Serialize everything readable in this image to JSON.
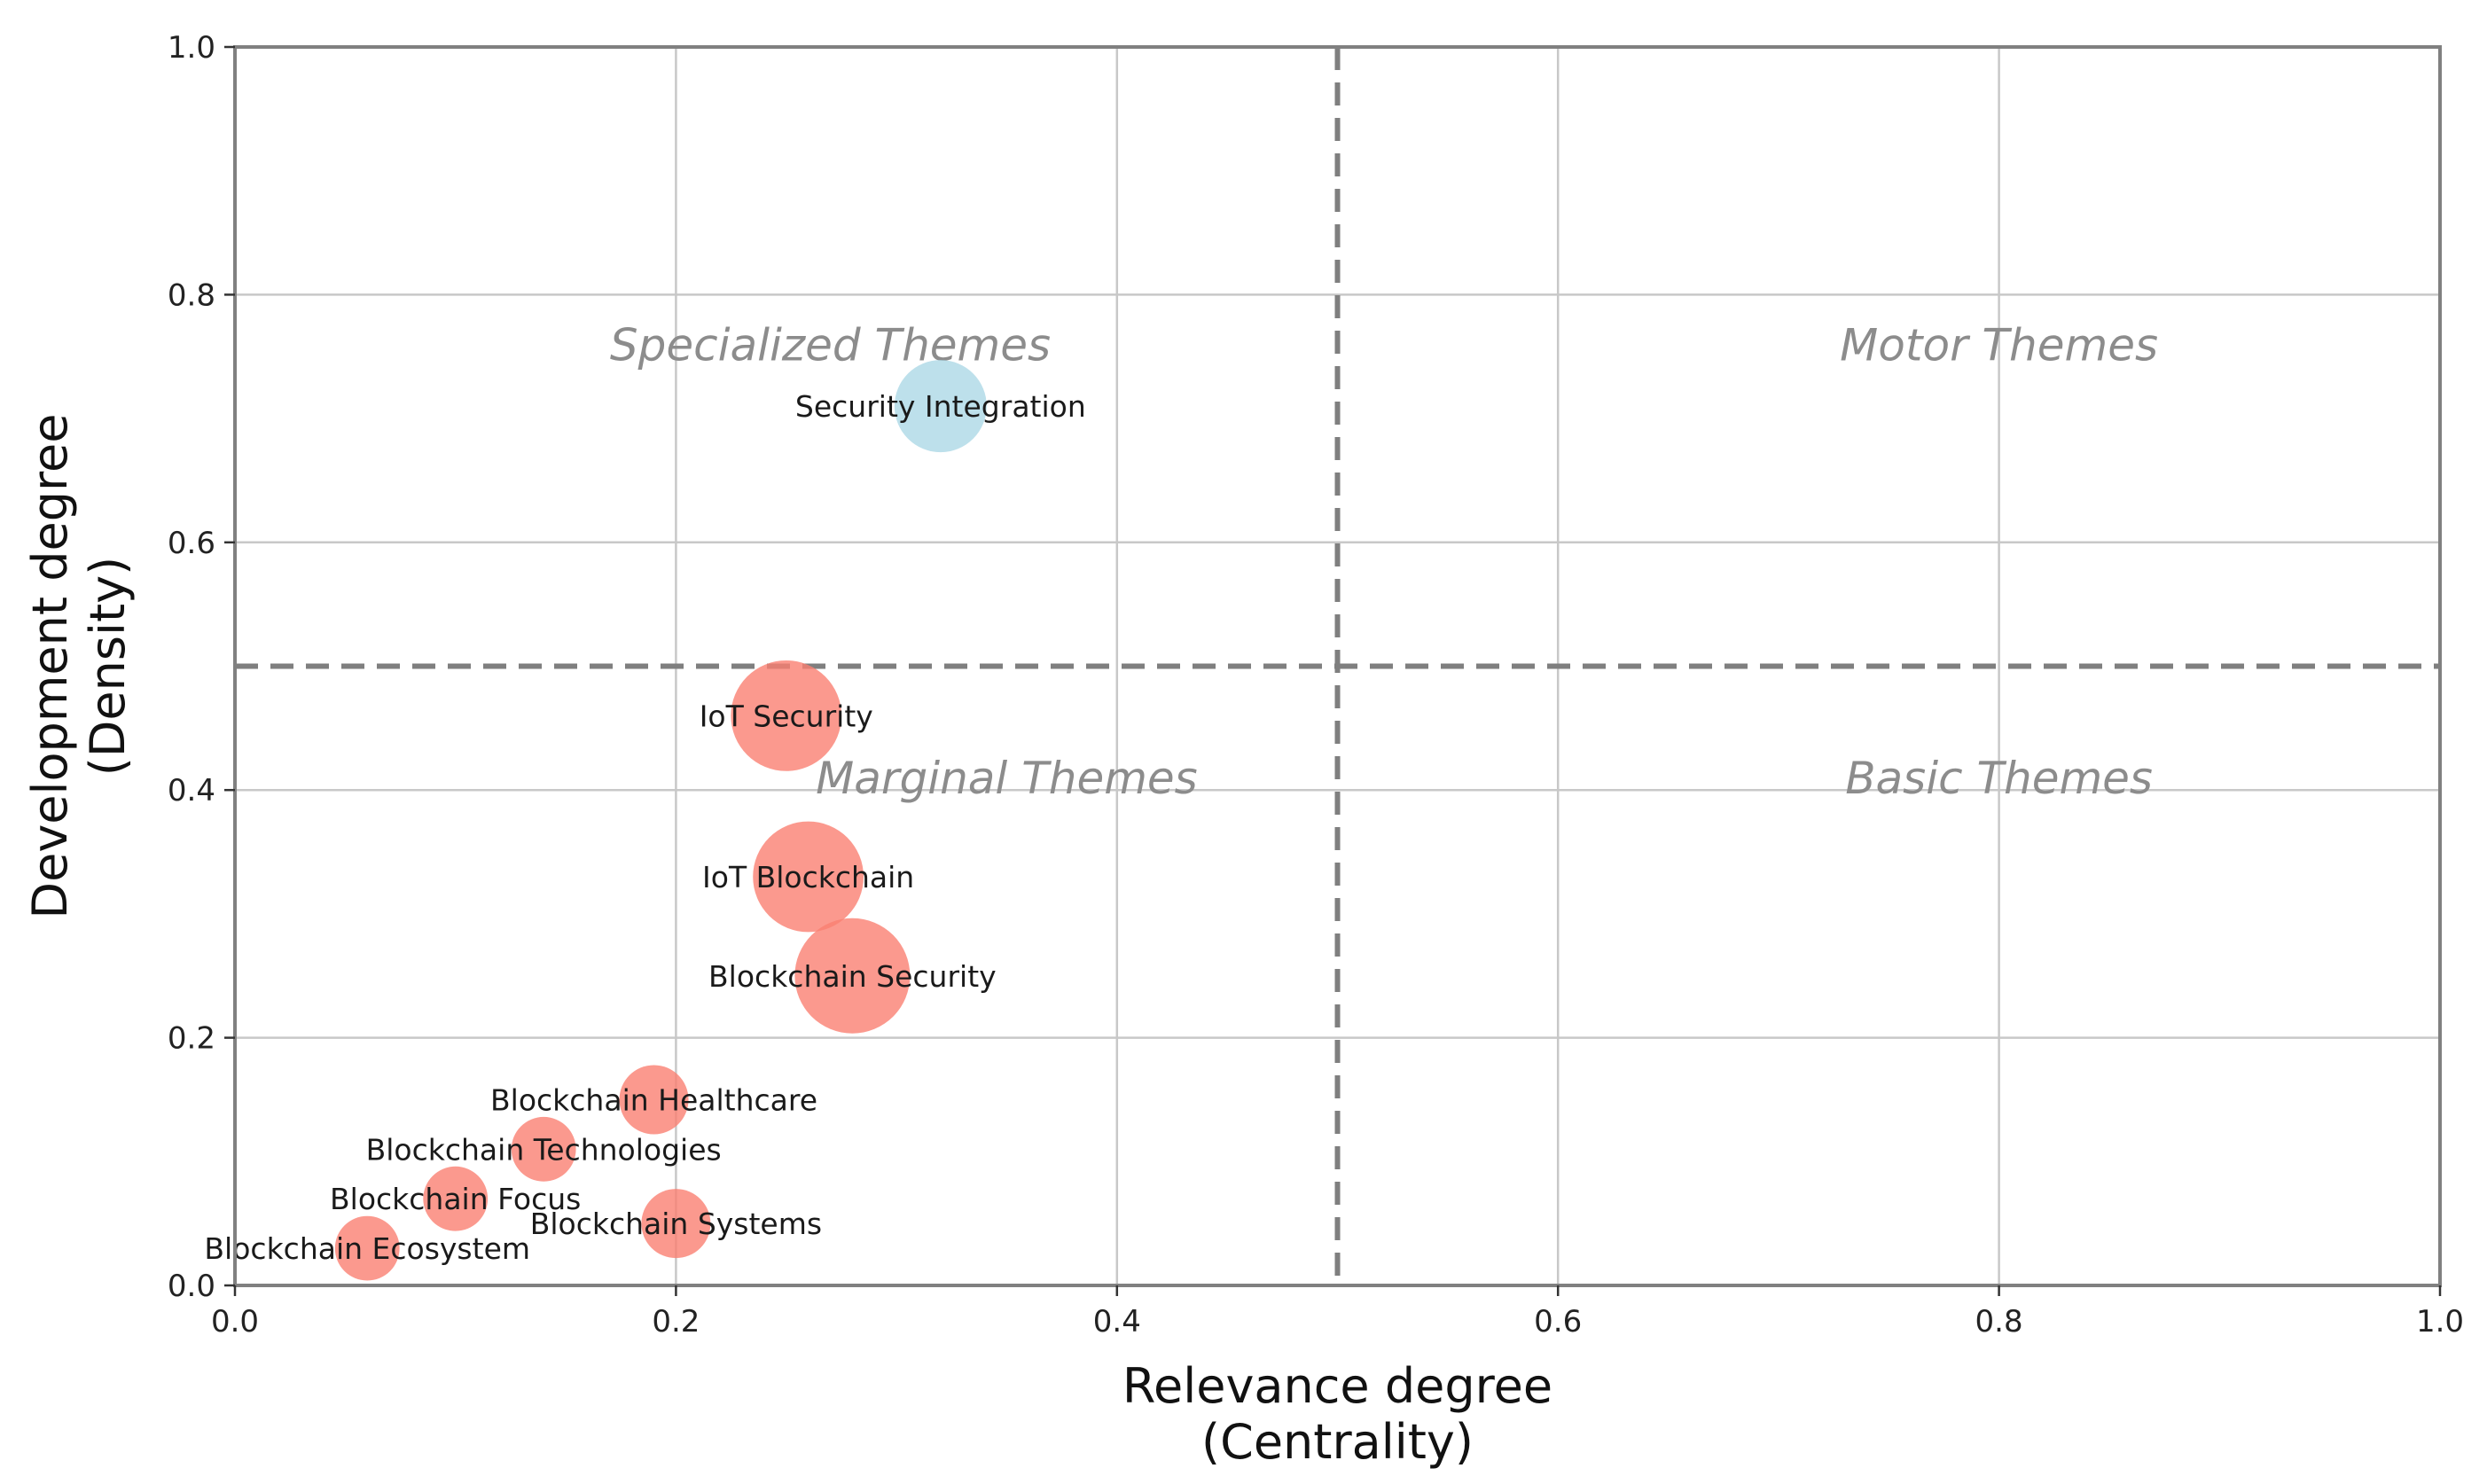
{
  "chart_data": {
    "type": "scatter",
    "xlabel": [
      "Relevance degree",
      "(Centrality)"
    ],
    "ylabel": [
      "Development degree",
      "(Density)"
    ],
    "xlim": [
      0.0,
      1.0
    ],
    "ylim": [
      0.0,
      1.0
    ],
    "x_ticks": [
      "0.0",
      "0.2",
      "0.4",
      "0.6",
      "0.8",
      "1.0"
    ],
    "y_ticks": [
      "0.0",
      "0.2",
      "0.4",
      "0.6",
      "0.8",
      "1.0"
    ],
    "x_tick_values": [
      0.0,
      0.2,
      0.4,
      0.6,
      0.8,
      1.0
    ],
    "y_tick_values": [
      0.0,
      0.2,
      0.4,
      0.6,
      0.8,
      1.0
    ],
    "grid": true,
    "divider_x": 0.5,
    "divider_y": 0.5,
    "quadrants": [
      {
        "label": "Specialized Themes",
        "x": 0.27,
        "y": 0.76
      },
      {
        "label": "Motor Themes",
        "x": 0.8,
        "y": 0.76
      },
      {
        "label": "Marginal Themes",
        "x": 0.35,
        "y": 0.41
      },
      {
        "label": "Basic Themes",
        "x": 0.8,
        "y": 0.41
      }
    ],
    "points": [
      {
        "label": "Security Integration",
        "x": 0.32,
        "y": 0.71,
        "size": 1.0,
        "color": "#add8e6"
      },
      {
        "label": "IoT Security",
        "x": 0.25,
        "y": 0.46,
        "size": 1.2,
        "color": "#fa8072"
      },
      {
        "label": "IoT Blockchain",
        "x": 0.26,
        "y": 0.33,
        "size": 1.2,
        "color": "#fa8072"
      },
      {
        "label": "Blockchain Security",
        "x": 0.28,
        "y": 0.25,
        "size": 1.25,
        "color": "#fa8072"
      },
      {
        "label": "Blockchain Healthcare",
        "x": 0.19,
        "y": 0.15,
        "size": 0.75,
        "color": "#fa8072"
      },
      {
        "label": "Blockchain Technologies",
        "x": 0.14,
        "y": 0.11,
        "size": 0.7,
        "color": "#fa8072"
      },
      {
        "label": "Blockchain Focus",
        "x": 0.1,
        "y": 0.07,
        "size": 0.7,
        "color": "#fa8072"
      },
      {
        "label": "Blockchain Systems",
        "x": 0.2,
        "y": 0.05,
        "size": 0.75,
        "color": "#fa8072"
      },
      {
        "label": "Blockchain Ecosystem",
        "x": 0.06,
        "y": 0.03,
        "size": 0.7,
        "color": "#fa8072"
      }
    ]
  }
}
